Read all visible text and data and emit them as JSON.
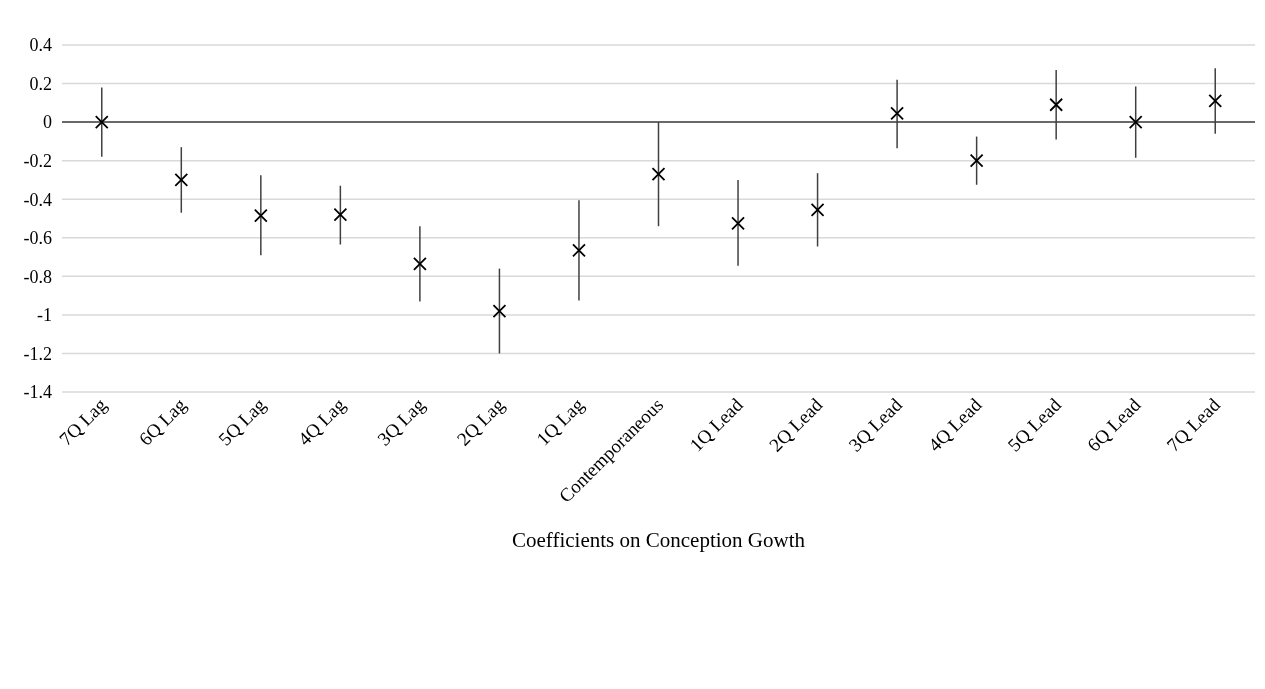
{
  "chart_data": {
    "type": "scatter",
    "xlabel": "Coefficients on Conception Gowth",
    "categories": [
      "7Q Lag",
      "6Q Lag",
      "5Q Lag",
      "4Q Lag",
      "3Q Lag",
      "2Q Lag",
      "1Q Lag",
      "Contemporaneous",
      "1Q Lead",
      "2Q Lead",
      "3Q Lead",
      "4Q Lead",
      "5Q Lead",
      "6Q Lead",
      "7Q Lead"
    ],
    "values": [
      0,
      -0.3,
      -0.485,
      -0.48,
      -0.735,
      -0.98,
      -0.665,
      -0.27,
      -0.525,
      -0.455,
      0.045,
      -0.2,
      0.09,
      0,
      0.11
    ],
    "errors": [
      [
        -0.18,
        0.18
      ],
      [
        -0.47,
        -0.13
      ],
      [
        -0.69,
        -0.275
      ],
      [
        -0.635,
        -0.33
      ],
      [
        -0.93,
        -0.54
      ],
      [
        -1.2,
        -0.76
      ],
      [
        -0.925,
        -0.405
      ],
      [
        -0.54,
        0
      ],
      [
        -0.745,
        -0.3
      ],
      [
        -0.645,
        -0.265
      ],
      [
        -0.135,
        0.22
      ],
      [
        -0.325,
        -0.075
      ],
      [
        -0.09,
        0.27
      ],
      [
        -0.185,
        0.185
      ],
      [
        -0.06,
        0.28
      ]
    ],
    "color": "#000000",
    "ylim": [
      -1.4,
      0.4
    ],
    "yticks": [
      -1.4,
      -1.2,
      -1,
      -0.8,
      -0.6,
      -0.4,
      -0.2,
      0,
      0.2,
      0.4
    ],
    "grid": "y",
    "marker": "cross"
  }
}
